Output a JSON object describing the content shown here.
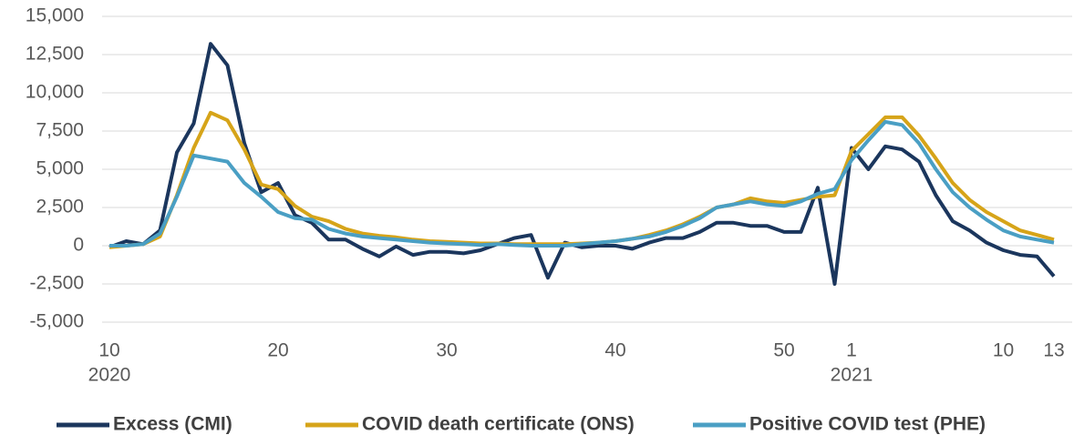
{
  "chart_data": {
    "type": "line",
    "categories": [
      "10",
      null,
      null,
      null,
      null,
      null,
      null,
      null,
      null,
      null,
      "20",
      null,
      null,
      null,
      null,
      null,
      null,
      null,
      null,
      null,
      "30",
      null,
      null,
      null,
      null,
      null,
      null,
      null,
      null,
      null,
      "40",
      null,
      null,
      null,
      null,
      null,
      null,
      null,
      null,
      null,
      "50",
      null,
      null,
      null,
      "1",
      null,
      null,
      null,
      null,
      null,
      null,
      null,
      null,
      "10",
      null,
      null,
      "13"
    ],
    "year_labels": [
      "2020",
      null,
      null,
      null,
      null,
      null,
      null,
      null,
      null,
      null,
      null,
      null,
      null,
      null,
      null,
      null,
      null,
      null,
      null,
      null,
      null,
      null,
      null,
      null,
      null,
      null,
      null,
      null,
      null,
      null,
      null,
      null,
      null,
      null,
      null,
      null,
      null,
      null,
      null,
      null,
      null,
      null,
      null,
      null,
      "2021",
      null,
      null,
      null,
      null,
      null,
      null,
      null,
      null,
      null,
      null,
      null,
      null
    ],
    "series": [
      {
        "name": "Excess (CMI)",
        "color": "#1b365d",
        "values": [
          -100,
          300,
          100,
          1000,
          6100,
          8000,
          13200,
          11800,
          6700,
          3500,
          4100,
          2000,
          1500,
          400,
          400,
          -200,
          -700,
          -50,
          -600,
          -400,
          -400,
          -500,
          -300,
          100,
          500,
          700,
          -2100,
          200,
          -100,
          0,
          0,
          -200,
          200,
          500,
          500,
          900,
          1500,
          1500,
          1300,
          1300,
          900,
          900,
          3800,
          -2500,
          6400,
          5000,
          6500,
          6300,
          5500,
          3300,
          1600,
          1000,
          200,
          -300,
          -600,
          -700,
          -2000
        ]
      },
      {
        "name": "COVID death certificate (ONS)",
        "color": "#d6a419",
        "values": [
          -100,
          0,
          100,
          600,
          3300,
          6400,
          8700,
          8200,
          6300,
          4000,
          3700,
          2600,
          1900,
          1600,
          1100,
          800,
          650,
          550,
          400,
          300,
          250,
          200,
          150,
          150,
          100,
          100,
          100,
          100,
          150,
          200,
          300,
          450,
          700,
          1000,
          1400,
          1900,
          2500,
          2700,
          3100,
          2900,
          2800,
          3000,
          3200,
          3300,
          6200,
          7300,
          8400,
          8400,
          7200,
          5700,
          4100,
          3000,
          2200,
          1600,
          1000,
          700,
          400
        ]
      },
      {
        "name": "Positive COVID test (PHE)",
        "color": "#4a9fc4",
        "values": [
          0,
          0,
          100,
          800,
          3200,
          5900,
          5700,
          5500,
          4100,
          3200,
          2200,
          1800,
          1700,
          1100,
          800,
          600,
          500,
          400,
          300,
          200,
          150,
          100,
          50,
          100,
          50,
          0,
          0,
          0,
          100,
          200,
          300,
          450,
          600,
          900,
          1300,
          1800,
          2500,
          2700,
          2900,
          2700,
          2600,
          2900,
          3400,
          3700,
          5600,
          6900,
          8100,
          7900,
          6700,
          5000,
          3500,
          2500,
          1700,
          1000,
          600,
          400,
          200
        ]
      }
    ],
    "ylim": [
      -5000,
      15000
    ],
    "yticks": [
      {
        "value": -5000,
        "label": "-5,000"
      },
      {
        "value": -2500,
        "label": "-2,500"
      },
      0,
      {
        "value": 2500,
        "label": "2,500"
      },
      {
        "value": 5000,
        "label": "5,000"
      },
      {
        "value": 7500,
        "label": "7,500"
      },
      {
        "value": 10000,
        "label": "10,000"
      },
      {
        "value": 12500,
        "label": "12,500"
      },
      {
        "value": 15000,
        "label": "15,000"
      }
    ],
    "grid": true,
    "legend": "bottom"
  }
}
